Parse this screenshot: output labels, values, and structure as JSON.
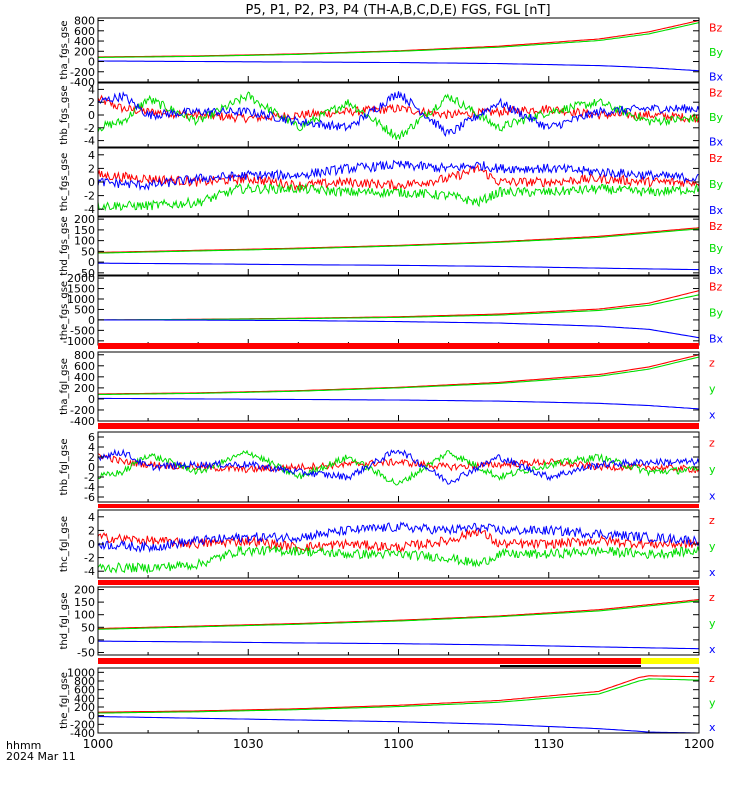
{
  "title": "P5, P1, P2, P3, P4 (TH-A,B,C,D,E) FGS, FGL [nT]",
  "time_axis": {
    "ticks": [
      "1000",
      "1030",
      "1100",
      "1130",
      "1200"
    ],
    "label_line1": "hhmm",
    "label_line2": "2024 Mar 11"
  },
  "colors": {
    "x": "#0000ff",
    "y": "#00dd00",
    "z": "#ff0000",
    "bar_red": "#ff0000",
    "bar_yellow": "#ffff00",
    "axis": "#000000"
  },
  "chart_data": [
    {
      "type": "line",
      "name": "tha_fgs_gse",
      "ylabel": "tha_fgs_gse",
      "ylim": [
        -400,
        850
      ],
      "yticks": [
        800,
        600,
        400,
        200,
        0,
        -200,
        -400
      ],
      "ytick_labels": [
        "800",
        "600",
        "400",
        "200",
        "0",
        "-200",
        "-400"
      ],
      "legend": [
        "Bz",
        "By",
        "Bx"
      ],
      "series": [
        {
          "comp": "z",
          "x": [
            0,
            20,
            40,
            60,
            80,
            100,
            110,
            120
          ],
          "y": [
            90,
            110,
            150,
            210,
            300,
            440,
            580,
            800
          ]
        },
        {
          "comp": "y",
          "x": [
            0,
            20,
            40,
            60,
            80,
            100,
            110,
            120
          ],
          "y": [
            80,
            100,
            140,
            200,
            280,
            410,
            540,
            760
          ]
        },
        {
          "comp": "x",
          "x": [
            0,
            20,
            40,
            60,
            80,
            100,
            110,
            120
          ],
          "y": [
            10,
            0,
            -10,
            -20,
            -40,
            -80,
            -120,
            -180
          ]
        }
      ]
    },
    {
      "type": "line",
      "name": "thb_fgs_gse",
      "ylabel": "thb_fgs_gse",
      "ylim": [
        -5,
        5
      ],
      "yticks": [
        4,
        2,
        0,
        -2,
        -4
      ],
      "ytick_labels": [
        "4",
        "2",
        "0",
        "-2",
        "-4"
      ],
      "legend": [
        "Bz",
        "By",
        "Bx"
      ],
      "series": [
        {
          "comp": "z",
          "x": [
            0,
            5,
            10,
            20,
            30,
            40,
            50,
            60,
            70,
            80,
            90,
            100,
            110,
            120
          ],
          "y": [
            2.5,
            1.0,
            0.5,
            0.0,
            -0.5,
            0.0,
            0.5,
            1.0,
            0.0,
            0.5,
            1.0,
            0.0,
            0.0,
            -0.5
          ]
        },
        {
          "comp": "y",
          "x": [
            0,
            5,
            10,
            20,
            30,
            40,
            50,
            60,
            70,
            80,
            90,
            100,
            110,
            120
          ],
          "y": [
            -2.0,
            -1.0,
            2.5,
            -1.0,
            3.0,
            -2.0,
            2.0,
            -3.5,
            3.0,
            -2.0,
            0.5,
            2.0,
            -1.0,
            -0.5
          ]
        },
        {
          "comp": "x",
          "x": [
            0,
            5,
            10,
            20,
            30,
            40,
            50,
            60,
            70,
            80,
            90,
            100,
            110,
            120
          ],
          "y": [
            2.0,
            3.0,
            0.0,
            0.5,
            0.5,
            -1.0,
            -2.0,
            3.5,
            -3.0,
            2.0,
            -2.0,
            0.5,
            1.0,
            1.0
          ]
        }
      ]
    },
    {
      "type": "line",
      "name": "thc_fgs_gse",
      "ylabel": "thc_fgs_gse",
      "ylim": [
        -5,
        5
      ],
      "yticks": [
        4,
        2,
        0,
        -2,
        -4
      ],
      "ytick_labels": [
        "4",
        "2",
        "0",
        "-2",
        "-4"
      ],
      "legend": [
        "Bz",
        "By",
        "Bx"
      ],
      "series": [
        {
          "comp": "z",
          "x": [
            0,
            10,
            20,
            30,
            40,
            50,
            60,
            70,
            76,
            80,
            90,
            100,
            110,
            120
          ],
          "y": [
            1.0,
            0.5,
            0.0,
            0.5,
            -0.5,
            0.0,
            -0.5,
            0.5,
            2.0,
            0.0,
            0.0,
            0.5,
            0.0,
            0.0
          ]
        },
        {
          "comp": "y",
          "x": [
            0,
            10,
            20,
            28,
            40,
            50,
            60,
            70,
            76,
            80,
            90,
            100,
            110,
            120
          ],
          "y": [
            -3.5,
            -3.5,
            -3.0,
            -1.0,
            -1.0,
            -1.5,
            -1.5,
            -2.0,
            -3.0,
            -1.5,
            -1.5,
            -1.0,
            -1.5,
            -1.0
          ]
        },
        {
          "comp": "x",
          "x": [
            0,
            10,
            20,
            30,
            40,
            50,
            60,
            70,
            76,
            80,
            90,
            100,
            110,
            120
          ],
          "y": [
            0.0,
            -0.5,
            0.5,
            1.0,
            1.0,
            2.0,
            2.5,
            2.0,
            2.5,
            2.0,
            2.0,
            1.5,
            1.0,
            0.5
          ]
        }
      ]
    },
    {
      "type": "line",
      "name": "thd_fgs_gse",
      "ylabel": "thd_fgs_gse",
      "ylim": [
        -60,
        210
      ],
      "yticks": [
        200,
        150,
        100,
        50,
        0,
        -50
      ],
      "ytick_labels": [
        "200",
        "150",
        "100",
        "50",
        "0",
        "-50"
      ],
      "legend": [
        "Bz",
        "By",
        "Bx"
      ],
      "series": [
        {
          "comp": "z",
          "x": [
            0,
            20,
            40,
            60,
            80,
            100,
            120
          ],
          "y": [
            45,
            55,
            65,
            78,
            95,
            120,
            160
          ]
        },
        {
          "comp": "y",
          "x": [
            0,
            20,
            40,
            60,
            80,
            100,
            120
          ],
          "y": [
            42,
            52,
            62,
            75,
            92,
            115,
            155
          ]
        },
        {
          "comp": "x",
          "x": [
            0,
            20,
            40,
            60,
            80,
            100,
            120
          ],
          "y": [
            -5,
            -8,
            -12,
            -15,
            -20,
            -28,
            -35
          ]
        }
      ]
    },
    {
      "type": "line",
      "name": "the_fgs_gse",
      "ylabel": "the_fgs_gse",
      "ylim": [
        -1200,
        2100
      ],
      "yticks": [
        2000,
        1500,
        1000,
        500,
        0,
        -500,
        -1000
      ],
      "ytick_labels": [
        "2000",
        "1500",
        "1000",
        "500",
        "0",
        "-500",
        "-1000"
      ],
      "legend": [
        "Bz",
        "By",
        "Bx"
      ],
      "series": [
        {
          "comp": "z",
          "x": [
            0,
            20,
            40,
            60,
            80,
            100,
            110,
            120
          ],
          "y": [
            0,
            30,
            80,
            150,
            280,
            520,
            800,
            1400
          ]
        },
        {
          "comp": "y",
          "x": [
            0,
            20,
            40,
            60,
            80,
            100,
            110,
            120
          ],
          "y": [
            0,
            20,
            60,
            120,
            230,
            450,
            700,
            1200
          ]
        },
        {
          "comp": "x",
          "x": [
            0,
            20,
            40,
            60,
            80,
            100,
            110,
            120
          ],
          "y": [
            0,
            -10,
            -30,
            -80,
            -150,
            -300,
            -450,
            -850
          ]
        }
      ]
    },
    {
      "type": "line",
      "name": "tha_fgl_gse",
      "ylabel": "tha_fgl_gse",
      "ylim": [
        -400,
        850
      ],
      "yticks": [
        800,
        600,
        400,
        200,
        0,
        -200,
        -400
      ],
      "ytick_labels": [
        "800",
        "600",
        "400",
        "200",
        "0",
        "-200",
        "-400"
      ],
      "legend": [
        "z",
        "y",
        "x"
      ],
      "series": [
        {
          "comp": "z",
          "x": [
            0,
            20,
            40,
            60,
            80,
            100,
            110,
            120
          ],
          "y": [
            90,
            110,
            150,
            210,
            300,
            440,
            580,
            800
          ]
        },
        {
          "comp": "y",
          "x": [
            0,
            20,
            40,
            60,
            80,
            100,
            110,
            120
          ],
          "y": [
            80,
            100,
            140,
            200,
            280,
            410,
            540,
            760
          ]
        },
        {
          "comp": "x",
          "x": [
            0,
            20,
            40,
            60,
            80,
            100,
            110,
            120
          ],
          "y": [
            10,
            0,
            -10,
            -20,
            -40,
            -80,
            -120,
            -180
          ]
        }
      ]
    },
    {
      "type": "line",
      "name": "thb_fgl_gse",
      "ylabel": "thb_fgl_gse",
      "ylim": [
        -7,
        7
      ],
      "yticks": [
        6,
        4,
        2,
        0,
        -2,
        -4,
        -6
      ],
      "ytick_labels": [
        "6",
        "4",
        "2",
        "0",
        "-2",
        "-4",
        "-6"
      ],
      "legend": [
        "z",
        "y",
        "x"
      ],
      "series": [
        {
          "comp": "z",
          "x": [
            0,
            5,
            10,
            20,
            30,
            40,
            50,
            60,
            70,
            80,
            90,
            100,
            110,
            120
          ],
          "y": [
            2.5,
            1.0,
            0.5,
            0.0,
            -0.5,
            0.0,
            0.5,
            1.0,
            0.0,
            0.5,
            1.0,
            0.0,
            0.0,
            -0.5
          ]
        },
        {
          "comp": "y",
          "x": [
            0,
            5,
            10,
            20,
            30,
            40,
            50,
            60,
            70,
            80,
            90,
            100,
            110,
            120
          ],
          "y": [
            -2.0,
            -1.0,
            2.5,
            -1.0,
            3.0,
            -2.0,
            2.0,
            -3.5,
            3.0,
            -2.0,
            0.5,
            2.0,
            -1.0,
            -0.5
          ]
        },
        {
          "comp": "x",
          "x": [
            0,
            5,
            10,
            20,
            30,
            40,
            50,
            60,
            70,
            80,
            90,
            100,
            110,
            120
          ],
          "y": [
            2.0,
            3.0,
            0.0,
            0.5,
            0.5,
            -1.0,
            -2.0,
            3.5,
            -3.0,
            2.0,
            -2.0,
            0.5,
            1.0,
            1.0
          ]
        }
      ]
    },
    {
      "type": "line",
      "name": "thc_fgl_gse",
      "ylabel": "thc_fgl_gse",
      "ylim": [
        -5,
        5
      ],
      "yticks": [
        4,
        2,
        0,
        -2,
        -4
      ],
      "ytick_labels": [
        "4",
        "2",
        "0",
        "-2",
        "-4"
      ],
      "legend": [
        "z",
        "y",
        "x"
      ],
      "series": [
        {
          "comp": "z",
          "x": [
            0,
            10,
            20,
            30,
            40,
            50,
            60,
            70,
            76,
            80,
            90,
            100,
            110,
            120
          ],
          "y": [
            1.0,
            0.5,
            0.0,
            0.5,
            -0.5,
            0.0,
            -0.5,
            0.5,
            2.0,
            0.0,
            0.0,
            0.5,
            0.0,
            0.0
          ]
        },
        {
          "comp": "y",
          "x": [
            0,
            10,
            20,
            28,
            40,
            50,
            60,
            70,
            76,
            80,
            90,
            100,
            110,
            120
          ],
          "y": [
            -3.5,
            -3.5,
            -3.0,
            -1.0,
            -1.0,
            -1.5,
            -1.5,
            -2.0,
            -3.0,
            -1.5,
            -1.5,
            -1.0,
            -1.5,
            -1.0
          ]
        },
        {
          "comp": "x",
          "x": [
            0,
            10,
            20,
            30,
            40,
            50,
            60,
            70,
            76,
            80,
            90,
            100,
            110,
            120
          ],
          "y": [
            0.0,
            -0.5,
            0.5,
            1.0,
            1.0,
            2.0,
            2.5,
            2.0,
            2.5,
            2.0,
            2.0,
            1.5,
            1.0,
            0.5
          ]
        }
      ]
    },
    {
      "type": "line",
      "name": "thd_fgl_gse",
      "ylabel": "thd_fgl_gse",
      "ylim": [
        -60,
        210
      ],
      "yticks": [
        200,
        150,
        100,
        50,
        0,
        -50
      ],
      "ytick_labels": [
        "200",
        "150",
        "100",
        "50",
        "0",
        "-50"
      ],
      "legend": [
        "z",
        "y",
        "x"
      ],
      "series": [
        {
          "comp": "z",
          "x": [
            0,
            20,
            40,
            60,
            80,
            100,
            120
          ],
          "y": [
            45,
            55,
            65,
            78,
            95,
            120,
            160
          ]
        },
        {
          "comp": "y",
          "x": [
            0,
            20,
            40,
            60,
            80,
            100,
            120
          ],
          "y": [
            42,
            52,
            62,
            75,
            92,
            115,
            155
          ]
        },
        {
          "comp": "x",
          "x": [
            0,
            20,
            40,
            60,
            80,
            100,
            120
          ],
          "y": [
            -5,
            -8,
            -12,
            -15,
            -20,
            -28,
            -35
          ]
        }
      ]
    },
    {
      "type": "line",
      "name": "the_fgl_gse",
      "ylabel": "the_fgl_gse",
      "ylim": [
        -400,
        1100
      ],
      "yticks": [
        1000,
        800,
        600,
        400,
        200,
        0,
        -200,
        -400
      ],
      "ytick_labels": [
        "1000",
        "800",
        "600",
        "400",
        "200",
        "0",
        "-200",
        "-400"
      ],
      "legend": [
        "z",
        "y",
        "x"
      ],
      "series": [
        {
          "comp": "z",
          "x": [
            0,
            20,
            40,
            60,
            80,
            100,
            108,
            110,
            120
          ],
          "y": [
            80,
            110,
            160,
            240,
            350,
            560,
            880,
            920,
            900
          ]
        },
        {
          "comp": "y",
          "x": [
            0,
            20,
            40,
            60,
            80,
            100,
            108,
            110,
            120
          ],
          "y": [
            60,
            90,
            140,
            210,
            310,
            500,
            800,
            850,
            820
          ]
        },
        {
          "comp": "x",
          "x": [
            0,
            20,
            40,
            60,
            80,
            100,
            108,
            110,
            120
          ],
          "y": [
            -20,
            -60,
            -100,
            -140,
            -200,
            -300,
            -360,
            -380,
            -400
          ]
        }
      ]
    }
  ]
}
